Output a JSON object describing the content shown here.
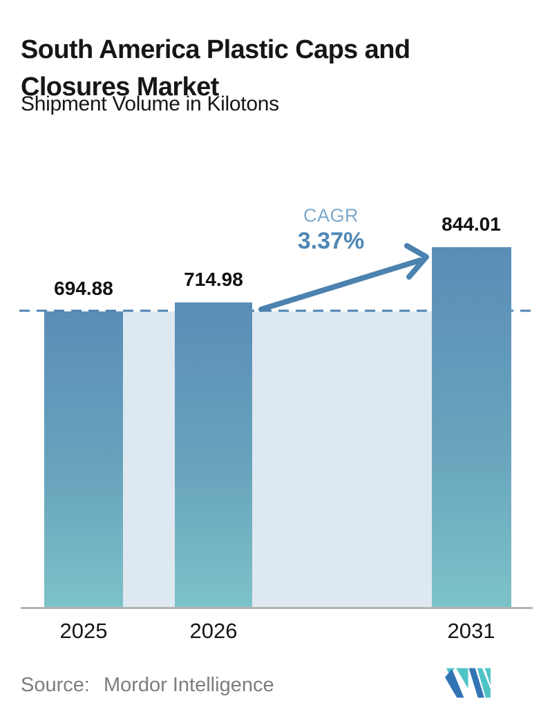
{
  "title": {
    "line1": "South America Plastic Caps and",
    "line2": "Closures Market"
  },
  "subtitle": "Shipment Volume in Kilotons",
  "cagr": {
    "label": "CAGR",
    "value": "3.37%"
  },
  "source": {
    "prefix": "Source:",
    "name": "Mordor Intelligence"
  },
  "logo": {
    "name": "mordor-intelligence-logo"
  },
  "colors": {
    "text": "#161616",
    "bar_top": "#5a8db8",
    "bar_mid": "#68a4bd",
    "bar_bottom": "#7dc2c8",
    "band": "#dee8f0",
    "accent": "#4c82b0",
    "cagr_label": "#7fa9cb",
    "cagr_value": "#4f87b5",
    "axis": "#b3b3b3",
    "source_text": "#7d7d7d",
    "logo_blue": "#3273b4",
    "logo_teal": "#4fc4c6"
  },
  "chart_data": {
    "type": "bar",
    "title": "South America Plastic Caps and Closures Market",
    "subtitle": "Shipment Volume in Kilotons",
    "unit": "Kilotons",
    "categories": [
      "2025",
      "2026",
      "2031"
    ],
    "values": [
      694.88,
      714.98,
      844.01
    ],
    "xlabel": "",
    "ylabel": "Shipment Volume (Kilotons)",
    "gridlines": false,
    "legend": false,
    "annotations": {
      "cagr_label": "CAGR",
      "cagr_value": "3.37%",
      "dashed_reference_level": 694.88,
      "arrow": "from 2026 reference level up to 2031 bar"
    }
  }
}
